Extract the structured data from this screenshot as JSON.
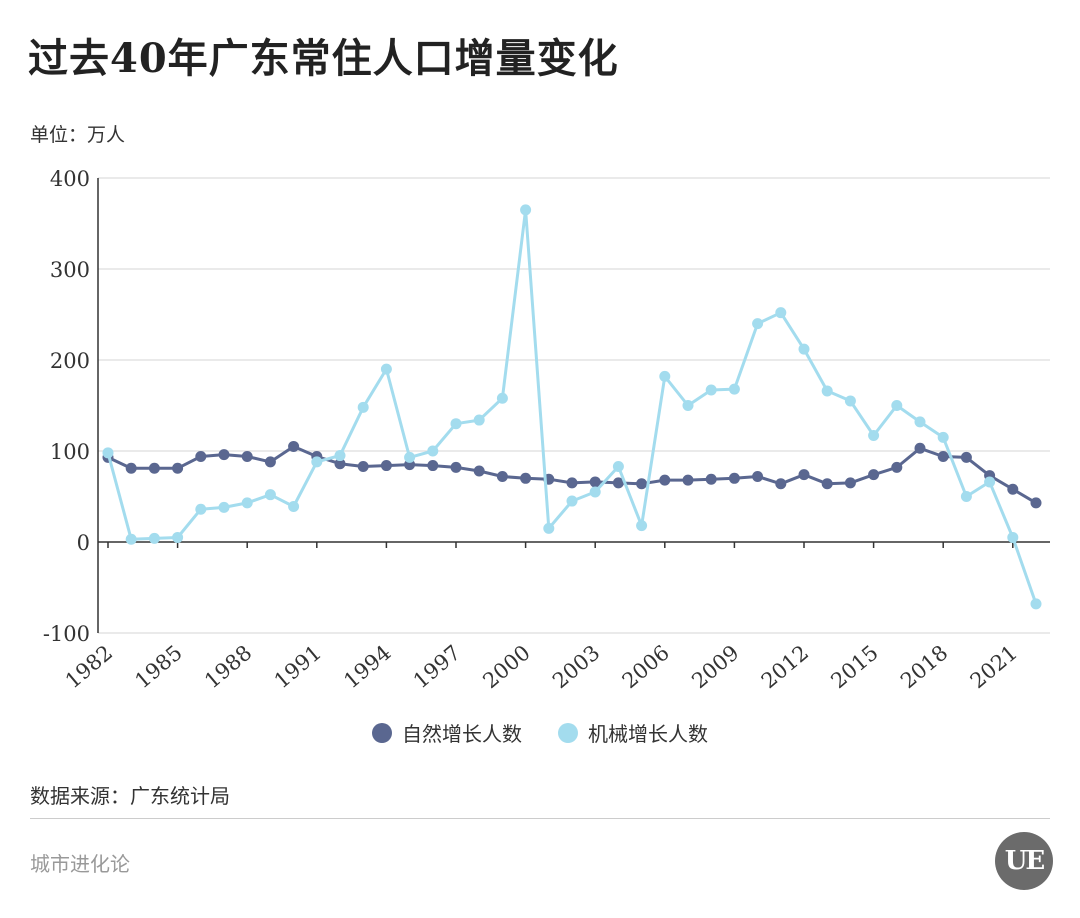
{
  "title": "过去40年广东常住人口增量变化",
  "unit_label": "单位：万人",
  "source_label": "数据来源：广东统计局",
  "brand_label": "城市进化论",
  "logo_text": "UE",
  "colors": {
    "natural": "#5a6790",
    "migration": "#a3dcee",
    "grid": "#dddddd",
    "axis": "#333333"
  },
  "chart_data": {
    "type": "line",
    "title": "过去40年广东常住人口增量变化",
    "ylabel": "单位：万人",
    "xlabel": "",
    "ylim": [
      -100,
      400
    ],
    "yticks": [
      400,
      300,
      200,
      100,
      0,
      -100
    ],
    "x": [
      1982,
      1983,
      1984,
      1985,
      1986,
      1987,
      1988,
      1989,
      1990,
      1991,
      1992,
      1993,
      1994,
      1995,
      1996,
      1997,
      1998,
      1999,
      2000,
      2001,
      2002,
      2003,
      2004,
      2005,
      2006,
      2007,
      2008,
      2009,
      2010,
      2011,
      2012,
      2013,
      2014,
      2015,
      2016,
      2017,
      2018,
      2019,
      2020,
      2021,
      2022
    ],
    "xticks": [
      1982,
      1985,
      1988,
      1991,
      1994,
      1997,
      2000,
      2003,
      2006,
      2009,
      2012,
      2015,
      2018,
      2021
    ],
    "grid": true,
    "legend": "bottom",
    "series": [
      {
        "name": "自然增长人数",
        "color": "#5a6790",
        "values": [
          93,
          81,
          81,
          81,
          94,
          96,
          94,
          88,
          105,
          94,
          86,
          83,
          84,
          85,
          84,
          82,
          78,
          72,
          70,
          69,
          65,
          66,
          65,
          64,
          68,
          68,
          69,
          70,
          72,
          64,
          74,
          64,
          65,
          74,
          82,
          103,
          94,
          93,
          73,
          58,
          43
        ]
      },
      {
        "name": "机械增长人数",
        "color": "#a3dcee",
        "values": [
          98,
          3,
          4,
          5,
          36,
          38,
          43,
          52,
          39,
          88,
          95,
          148,
          190,
          93,
          100,
          130,
          134,
          158,
          365,
          15,
          45,
          55,
          83,
          18,
          182,
          150,
          167,
          168,
          240,
          252,
          212,
          166,
          155,
          117,
          150,
          132,
          115,
          50,
          66,
          5,
          -68
        ]
      }
    ]
  }
}
